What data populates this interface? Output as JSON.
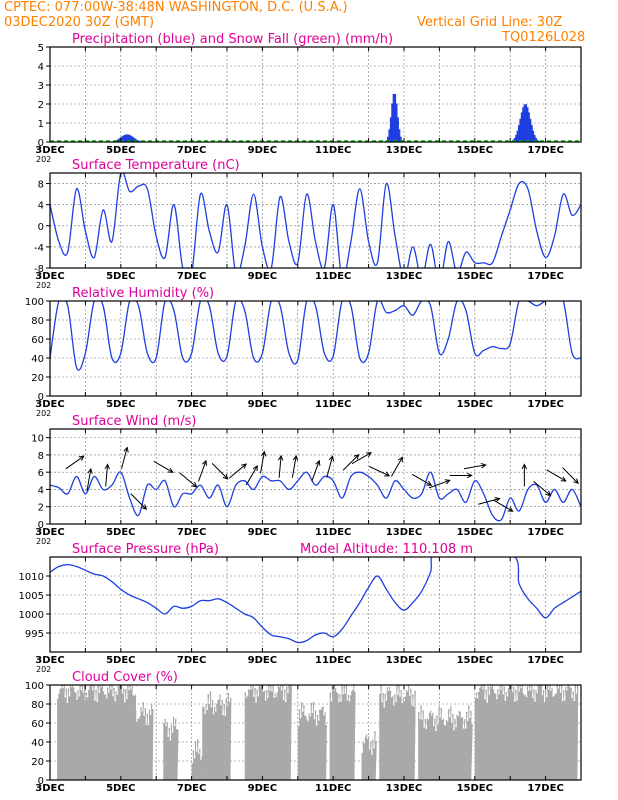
{
  "header": {
    "line1": "CPTEC:   077:00W-38:48N   WASHINGTON, D.C. (U.S.A.)",
    "line2_left": "03DEC2020 30Z (GMT)",
    "line2_right": "Vertical Grid Line: 30Z",
    "code": "TQ0126L028"
  },
  "colors": {
    "header": "#ff7f00",
    "titles": "#e0009a",
    "line": "#1f3fe0",
    "snow": "#00b000",
    "cloud": "#a9a9a9",
    "grid": "#777777"
  },
  "x_labels": [
    "3DEC",
    "5DEC",
    "7DEC",
    "9DEC",
    "11DEC",
    "13DEC",
    "15DEC",
    "17DEC"
  ],
  "year_fragment": "202",
  "chart_data": [
    {
      "type": "bar",
      "title": "Precipitation (blue) and Snow Fall (green) (mm/h)",
      "ylim": [
        0,
        5
      ],
      "yticks": [
        "0",
        "1",
        "2",
        "3",
        "4",
        "5"
      ],
      "bursts": [
        {
          "day": 5.15,
          "peak": 0.4,
          "width": 0.25
        },
        {
          "day": 12.7,
          "peak": 2.6,
          "width": 0.12
        },
        {
          "day": 16.4,
          "peak": 2.0,
          "width": 0.2
        }
      ],
      "snow_fall": 0
    },
    {
      "type": "line",
      "title": "Surface Temperature (nC)",
      "ylim": [
        -8,
        10
      ],
      "yticks": [
        "-8",
        "-4",
        "0",
        "4",
        "8"
      ],
      "x": [
        3.0,
        3.25,
        3.5,
        3.75,
        4.0,
        4.25,
        4.5,
        4.75,
        5.0,
        5.25,
        5.5,
        5.75,
        6.0,
        6.25,
        6.5,
        6.75,
        7.0,
        7.25,
        7.5,
        7.75,
        8.0,
        8.25,
        8.5,
        8.75,
        9.0,
        9.25,
        9.5,
        9.75,
        10.0,
        10.25,
        10.5,
        10.75,
        11.0,
        11.25,
        11.5,
        11.75,
        12.0,
        12.25,
        12.5,
        12.75,
        13.0,
        13.25,
        13.5,
        13.75,
        14.0,
        14.25,
        14.5,
        14.75,
        15.0,
        15.25,
        15.5,
        15.75,
        16.0,
        16.25,
        16.5,
        16.75,
        17.0,
        17.25,
        17.5,
        17.75,
        18.0
      ],
      "values": [
        4.0,
        -3.0,
        -5.0,
        7.0,
        -1.0,
        -6.0,
        3.0,
        -3.0,
        10.0,
        6.5,
        7.5,
        7.0,
        -2.0,
        -6.0,
        4.0,
        -8.0,
        -9.0,
        6.0,
        -1.0,
        -5.0,
        4.0,
        -9.0,
        -4.0,
        6.0,
        -4.0,
        -8.0,
        5.5,
        -3.0,
        -7.0,
        6.0,
        -3.0,
        -8.0,
        4.0,
        -10.0,
        -3.0,
        7.0,
        -3.0,
        -7.0,
        8.0,
        -2.0,
        -10.0,
        -4.0,
        -10.0,
        -3.5,
        -11.0,
        -3.0,
        -9.0,
        -5.0,
        -7.0,
        -7.0,
        -7.0,
        -2.0,
        3.0,
        8.0,
        7.0,
        -1.0,
        -6.0,
        -2.0,
        6.0,
        2.0,
        4.0
      ]
    },
    {
      "type": "line",
      "title": "Relative Humidity (%)",
      "ylim": [
        0,
        100
      ],
      "yticks": [
        "0",
        "20",
        "40",
        "60",
        "80",
        "100"
      ],
      "x": [
        3.0,
        3.25,
        3.5,
        3.75,
        4.0,
        4.25,
        4.5,
        4.75,
        5.0,
        5.25,
        5.5,
        5.75,
        6.0,
        6.25,
        6.5,
        6.75,
        7.0,
        7.25,
        7.5,
        7.75,
        8.0,
        8.25,
        8.5,
        8.75,
        9.0,
        9.25,
        9.5,
        9.75,
        10.0,
        10.25,
        10.5,
        10.75,
        11.0,
        11.25,
        11.5,
        11.75,
        12.0,
        12.25,
        12.5,
        12.75,
        13.0,
        13.25,
        13.5,
        13.75,
        14.0,
        14.25,
        14.5,
        14.75,
        15.0,
        15.25,
        15.5,
        15.75,
        16.0,
        16.25,
        16.5,
        16.75,
        17.0,
        17.25,
        17.5,
        17.75,
        18.0
      ],
      "values": [
        40,
        100,
        95,
        30,
        45,
        100,
        95,
        40,
        45,
        100,
        95,
        45,
        40,
        100,
        90,
        40,
        45,
        100,
        95,
        45,
        42,
        100,
        90,
        40,
        45,
        100,
        95,
        45,
        38,
        100,
        95,
        45,
        42,
        100,
        95,
        40,
        45,
        100,
        88,
        90,
        95,
        85,
        100,
        95,
        45,
        60,
        100,
        90,
        45,
        48,
        52,
        50,
        55,
        100,
        100,
        95,
        100,
        100,
        100,
        45,
        40
      ]
    },
    {
      "type": "line",
      "title": "Surface Wind (m/s)",
      "ylim": [
        0,
        11
      ],
      "yticks": [
        "0",
        "2",
        "4",
        "6",
        "8",
        "10"
      ],
      "x": [
        3.0,
        3.25,
        3.5,
        3.75,
        4.0,
        4.25,
        4.5,
        4.75,
        5.0,
        5.25,
        5.5,
        5.75,
        6.0,
        6.25,
        6.5,
        6.75,
        7.0,
        7.25,
        7.5,
        7.75,
        8.0,
        8.25,
        8.5,
        8.75,
        9.0,
        9.25,
        9.5,
        9.75,
        10.0,
        10.25,
        10.5,
        10.75,
        11.0,
        11.25,
        11.5,
        11.75,
        12.0,
        12.25,
        12.5,
        12.75,
        13.0,
        13.25,
        13.5,
        13.75,
        14.0,
        14.25,
        14.5,
        14.75,
        15.0,
        15.25,
        15.5,
        15.75,
        16.0,
        16.25,
        16.5,
        16.75,
        17.0,
        17.25,
        17.5,
        17.75,
        18.0
      ],
      "values": [
        4.5,
        4.2,
        3.5,
        5.5,
        3.5,
        5.5,
        4.0,
        4.5,
        6.0,
        3.0,
        1.0,
        4.5,
        4.0,
        5.0,
        2.0,
        3.5,
        3.5,
        4.5,
        3.0,
        4.5,
        2.0,
        4.5,
        5.0,
        4.0,
        5.5,
        5.0,
        5.0,
        4.0,
        5.0,
        6.0,
        4.5,
        5.5,
        5.0,
        3.0,
        5.5,
        6.0,
        5.5,
        4.5,
        3.0,
        5.0,
        4.0,
        3.0,
        3.5,
        6.0,
        3.0,
        3.5,
        4.0,
        2.5,
        5.0,
        3.5,
        1.0,
        0.5,
        3.0,
        1.5,
        4.0,
        4.5,
        2.5,
        4.0,
        2.5,
        4.0,
        2.0
      ],
      "arrows": [
        {
          "day": 3.7,
          "angle": -35
        },
        {
          "day": 4.1,
          "angle": -80
        },
        {
          "day": 4.6,
          "angle": -85
        },
        {
          "day": 5.1,
          "angle": -75
        },
        {
          "day": 5.5,
          "angle": 45
        },
        {
          "day": 6.2,
          "angle": 30
        },
        {
          "day": 6.9,
          "angle": 40
        },
        {
          "day": 7.3,
          "angle": -70
        },
        {
          "day": 7.8,
          "angle": 45
        },
        {
          "day": 8.3,
          "angle": -40
        },
        {
          "day": 8.7,
          "angle": -60
        },
        {
          "day": 9.0,
          "angle": -80
        },
        {
          "day": 9.5,
          "angle": -85
        },
        {
          "day": 9.9,
          "angle": -80
        },
        {
          "day": 10.5,
          "angle": -70
        },
        {
          "day": 10.9,
          "angle": -75
        },
        {
          "day": 11.5,
          "angle": -45
        },
        {
          "day": 11.8,
          "angle": -30
        },
        {
          "day": 12.3,
          "angle": 25
        },
        {
          "day": 12.8,
          "angle": -60
        },
        {
          "day": 13.5,
          "angle": 30
        },
        {
          "day": 14.0,
          "angle": -20
        },
        {
          "day": 14.6,
          "angle": 0
        },
        {
          "day": 15.0,
          "angle": -10
        },
        {
          "day": 15.4,
          "angle": -15
        },
        {
          "day": 15.8,
          "angle": 30
        },
        {
          "day": 16.4,
          "angle": -90
        },
        {
          "day": 16.9,
          "angle": 40
        },
        {
          "day": 17.3,
          "angle": 30
        },
        {
          "day": 17.7,
          "angle": 45
        }
      ]
    },
    {
      "type": "line",
      "title": "Surface Pressure (hPa)",
      "subtitle": "Model Altitude: 110.108 m",
      "ylim": [
        990,
        1015
      ],
      "yticks": [
        "995",
        "1000",
        "1005",
        "1010"
      ],
      "x": [
        3.0,
        3.25,
        3.5,
        3.75,
        4.0,
        4.25,
        4.5,
        4.75,
        5.0,
        5.25,
        5.5,
        5.75,
        6.0,
        6.25,
        6.5,
        6.75,
        7.0,
        7.25,
        7.5,
        7.75,
        8.0,
        8.25,
        8.5,
        8.75,
        9.0,
        9.25,
        9.5,
        9.75,
        10.0,
        10.25,
        10.5,
        10.75,
        11.0,
        11.25,
        11.5,
        11.75,
        12.0,
        12.25,
        12.5,
        12.75,
        13.0,
        13.25,
        13.5,
        13.75,
        14.0,
        16.0,
        16.25,
        16.5,
        16.75,
        17.0,
        17.25,
        17.5,
        17.75,
        18.0
      ],
      "values": [
        1011,
        1012.5,
        1013,
        1012.5,
        1011.5,
        1010.5,
        1010,
        1008.5,
        1006.5,
        1005,
        1004,
        1003,
        1001.5,
        1000,
        1002,
        1001.5,
        1002,
        1003.5,
        1003.5,
        1004,
        1003,
        1001.5,
        1000,
        999,
        996.5,
        994.5,
        994,
        993.5,
        992.5,
        993,
        994.5,
        995,
        994,
        996,
        999.5,
        1003,
        1007,
        1010,
        1006.5,
        1003,
        1001,
        1003,
        1006,
        1011,
        1018,
        1016,
        1008,
        1004,
        1001.5,
        999,
        1001.5,
        1003,
        1004.5,
        1006
      ]
    },
    {
      "type": "bar",
      "title": "Cloud Cover (%)",
      "ylim": [
        0,
        100
      ],
      "yticks": [
        "0",
        "20",
        "40",
        "60",
        "80",
        "100"
      ],
      "segments": [
        {
          "start": 3.2,
          "end": 5.4,
          "level": 95
        },
        {
          "start": 5.4,
          "end": 5.9,
          "level": 70
        },
        {
          "start": 6.2,
          "end": 6.6,
          "level": 55
        },
        {
          "start": 7.0,
          "end": 7.3,
          "level": 30
        },
        {
          "start": 7.3,
          "end": 8.1,
          "level": 80
        },
        {
          "start": 8.5,
          "end": 9.8,
          "level": 95
        },
        {
          "start": 10.0,
          "end": 10.8,
          "level": 70
        },
        {
          "start": 10.9,
          "end": 11.6,
          "level": 92
        },
        {
          "start": 11.8,
          "end": 12.2,
          "level": 40
        },
        {
          "start": 12.3,
          "end": 13.3,
          "level": 90
        },
        {
          "start": 13.4,
          "end": 14.9,
          "level": 65
        },
        {
          "start": 15.0,
          "end": 17.9,
          "level": 95
        }
      ]
    }
  ]
}
